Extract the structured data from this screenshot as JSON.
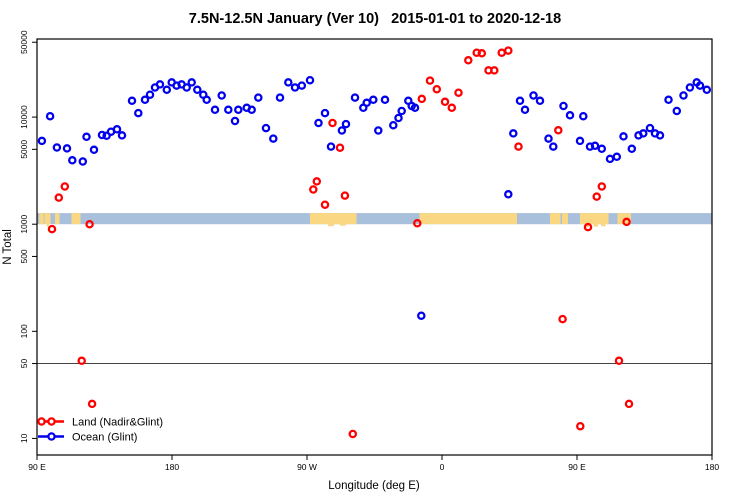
{
  "title": "7.5N-12.5N January (Ver 10)   2015-01-01 to 2020-12-18",
  "chart_data": {
    "type": "scatter",
    "title": "7.5N-12.5N January (Ver 10)   2015-01-01 to 2020-12-18",
    "xlabel": "Longitude (deg E)",
    "ylabel": "N Total",
    "x_domain": [
      90,
      540
    ],
    "y_domain": [
      7,
      53600
    ],
    "y_scale": "log",
    "x_ticks": [
      {
        "value": 90,
        "label": "90 E"
      },
      {
        "value": 180,
        "label": "180"
      },
      {
        "value": 270,
        "label": "90 W"
      },
      {
        "value": 360,
        "label": "0"
      },
      {
        "value": 450,
        "label": "90 E"
      },
      {
        "value": 540,
        "label": "180"
      }
    ],
    "y_ticks": [
      10,
      50,
      100,
      500,
      1000,
      5000,
      10000,
      50000
    ],
    "reference_line_y": 50,
    "reference_line_color": "#444444",
    "map_band": {
      "y_range": [
        1000,
        1270
      ],
      "ocean_color": "#A9C0DC",
      "land_color": "#FAD783",
      "land_patches_lon": [
        [
          91.5,
          94.5
        ],
        [
          95,
          99
        ],
        [
          102,
          105
        ],
        [
          113,
          119
        ],
        [
          272,
          303
        ],
        [
          345,
          410
        ],
        [
          432,
          439
        ],
        [
          440,
          444
        ],
        [
          452,
          471
        ],
        [
          477,
          486
        ]
      ]
    },
    "legend_position": "bottom-left",
    "series": [
      {
        "name": "Land (Nadir&Glint)",
        "color": "#FF0000",
        "points": [
          [
            100,
            900
          ],
          [
            104.5,
            1770
          ],
          [
            108.5,
            2250
          ],
          [
            125.1,
            1000
          ],
          [
            119.8,
            53
          ],
          [
            126.7,
            21
          ],
          [
            274.2,
            2110
          ],
          [
            276.5,
            2510
          ],
          [
            282,
            1520
          ],
          [
            295.3,
            1850
          ],
          [
            287,
            8800
          ],
          [
            292,
            5180
          ],
          [
            300.5,
            11
          ],
          [
            343.5,
            1020
          ],
          [
            346.5,
            14800
          ],
          [
            352,
            21900
          ],
          [
            356.5,
            18200
          ],
          [
            362,
            13900
          ],
          [
            366.5,
            12200
          ],
          [
            371,
            16900
          ],
          [
            377.5,
            33900
          ],
          [
            383.1,
            39900
          ],
          [
            386.5,
            39400
          ],
          [
            391,
            27300
          ],
          [
            394.9,
            27300
          ],
          [
            399.8,
            39900
          ],
          [
            404.2,
            41800
          ],
          [
            411,
            5300
          ],
          [
            437.5,
            7530
          ],
          [
            440.4,
            130
          ],
          [
            452.2,
            13
          ],
          [
            457.3,
            940
          ],
          [
            463.1,
            1810
          ],
          [
            466.5,
            2250
          ],
          [
            478,
            53
          ],
          [
            483.1,
            1050
          ],
          [
            484.7,
            21
          ]
        ]
      },
      {
        "name": "Ocean (Glint)",
        "color": "#0000EE",
        "points": [
          [
            93.3,
            6000
          ],
          [
            98.7,
            10200
          ],
          [
            103.3,
            5200
          ],
          [
            110,
            5100
          ],
          [
            113.5,
            3950
          ],
          [
            120.5,
            3850
          ],
          [
            123,
            6550
          ],
          [
            128,
            4950
          ],
          [
            133.3,
            6800
          ],
          [
            136.4,
            6700
          ],
          [
            139.3,
            7300
          ],
          [
            143.3,
            7700
          ],
          [
            146.7,
            6750
          ],
          [
            153.3,
            14200
          ],
          [
            157.5,
            10900
          ],
          [
            162,
            14500
          ],
          [
            165.3,
            16200
          ],
          [
            168.7,
            18900
          ],
          [
            172,
            20200
          ],
          [
            176.5,
            18000
          ],
          [
            179.8,
            21100
          ],
          [
            183.1,
            19700
          ],
          [
            186.4,
            20200
          ],
          [
            189.8,
            18900
          ],
          [
            193.1,
            21100
          ],
          [
            196.9,
            18000
          ],
          [
            200.9,
            16200
          ],
          [
            203.1,
            14500
          ],
          [
            208.7,
            11700
          ],
          [
            213.1,
            15900
          ],
          [
            217.5,
            11700
          ],
          [
            222,
            9200
          ],
          [
            224.2,
            11700
          ],
          [
            229.8,
            12200
          ],
          [
            233.1,
            11700
          ],
          [
            237.5,
            15200
          ],
          [
            242.7,
            7900
          ],
          [
            247.5,
            6300
          ],
          [
            252,
            15200
          ],
          [
            257.5,
            21100
          ],
          [
            262,
            18900
          ],
          [
            266.5,
            19700
          ],
          [
            272,
            22100
          ],
          [
            277.7,
            8800
          ],
          [
            282,
            10900
          ],
          [
            286,
            5300
          ],
          [
            293.3,
            7500
          ],
          [
            296,
            8600
          ],
          [
            302,
            15200
          ],
          [
            307.5,
            12200
          ],
          [
            309.8,
            13600
          ],
          [
            314.2,
            14500
          ],
          [
            317.5,
            7500
          ],
          [
            322,
            14500
          ],
          [
            327.5,
            8400
          ],
          [
            331,
            9800
          ],
          [
            333.1,
            11400
          ],
          [
            337.5,
            14200
          ],
          [
            339.8,
            12700
          ],
          [
            342,
            12200
          ],
          [
            346.2,
            140
          ],
          [
            404.2,
            1900
          ],
          [
            407.5,
            7050
          ],
          [
            412,
            14200
          ],
          [
            415.3,
            11700
          ],
          [
            421,
            15900
          ],
          [
            425.3,
            14200
          ],
          [
            431,
            6300
          ],
          [
            434.2,
            5300
          ],
          [
            441,
            12700
          ],
          [
            445.3,
            10400
          ],
          [
            452,
            6000
          ],
          [
            454.2,
            10200
          ],
          [
            458.7,
            5300
          ],
          [
            462,
            5400
          ],
          [
            466.5,
            5060
          ],
          [
            472,
            4070
          ],
          [
            476.5,
            4260
          ],
          [
            481,
            6600
          ],
          [
            486.5,
            5060
          ],
          [
            491,
            6740
          ],
          [
            494.2,
            7050
          ],
          [
            498.7,
            7900
          ],
          [
            502,
            7050
          ],
          [
            505.3,
            6740
          ],
          [
            511,
            14500
          ],
          [
            516.5,
            11400
          ],
          [
            521,
            15900
          ],
          [
            525.3,
            18900
          ],
          [
            529.8,
            21100
          ],
          [
            532,
            19700
          ],
          [
            536.5,
            18000
          ]
        ]
      }
    ]
  }
}
